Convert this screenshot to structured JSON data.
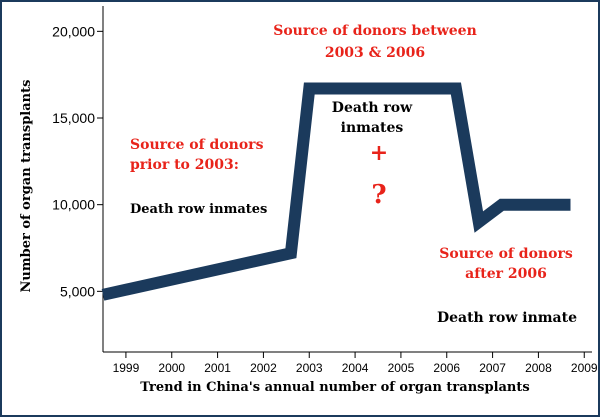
{
  "chart_data": {
    "type": "line",
    "title": "",
    "xlabel": "Trend in China's annual number of organ transplants",
    "ylabel": "Number of organ transplants",
    "x_ticks": [
      "1999",
      "2000",
      "2001",
      "2002",
      "2003",
      "2004",
      "2005",
      "2006",
      "2007",
      "2008",
      "2009"
    ],
    "y_ticks": [
      "5,000",
      "10,000",
      "15,000",
      "20,000"
    ],
    "xlim": [
      1998.5,
      2009.3
    ],
    "ylim": [
      1500,
      21000
    ],
    "grid": false,
    "series": [
      {
        "name": "",
        "color": "#1b3a5c",
        "x": [
          1998.5,
          2002.6,
          2003.0,
          2006.2,
          2006.7,
          2007.2,
          2008.7
        ],
        "y": [
          4800,
          7200,
          16700,
          16700,
          9000,
          10000,
          10000
        ]
      }
    ],
    "annotations": [
      {
        "lines": [
          "Source of donors between",
          "2003 & 2006"
        ],
        "color": "#e8231a"
      },
      {
        "lines": [
          "Source of donors",
          "prior to 2003:"
        ],
        "color": "#e8231a"
      },
      {
        "lines": [
          "Death row inmates"
        ],
        "color": "#000000"
      },
      {
        "lines": [
          "Death row",
          "inmates"
        ],
        "color": "#000000"
      },
      {
        "lines": [
          "+"
        ],
        "color": "#e8231a"
      },
      {
        "lines": [
          "?"
        ],
        "color": "#e8231a"
      },
      {
        "lines": [
          "Source of donors",
          "after 2006"
        ],
        "color": "#e8231a"
      },
      {
        "lines": [
          "Death row inmate"
        ],
        "color": "#000000"
      }
    ]
  }
}
